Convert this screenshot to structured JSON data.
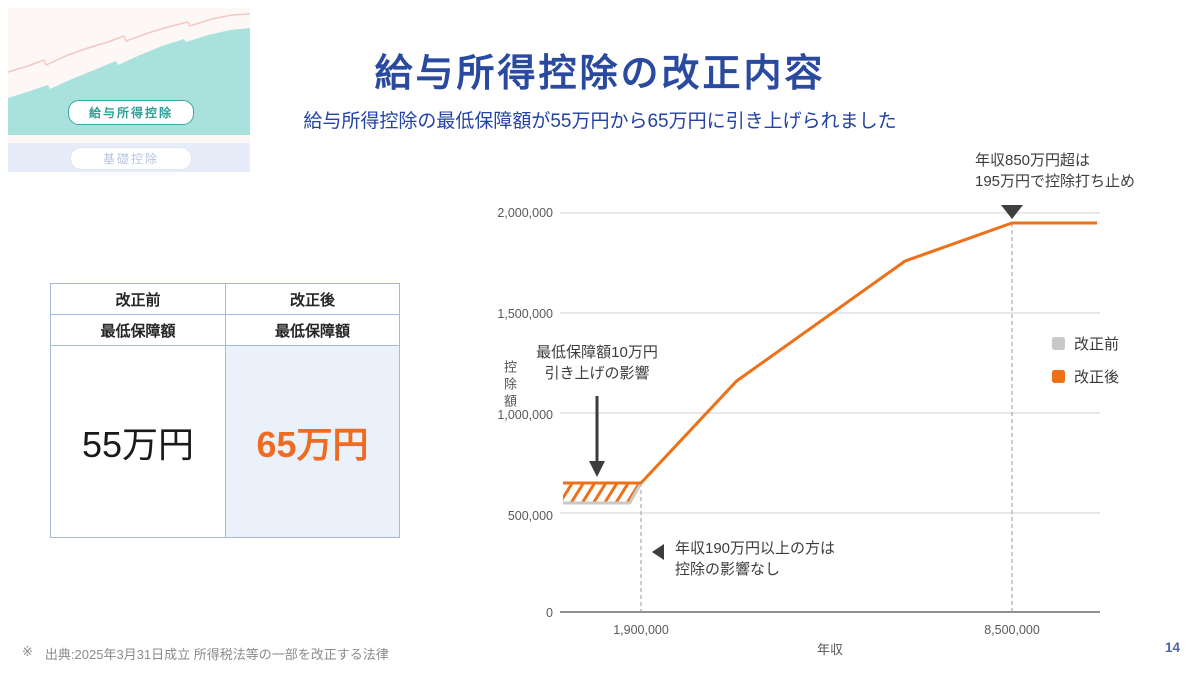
{
  "slide": {
    "title": "給与所得控除の改正内容",
    "subtitle": "給与所得控除の最低保障額が55万円から65万円に引き上げられました",
    "source_mark": "※",
    "source_text": "出典:2025年3月31日成立 所得税法等の一部を改正する法律",
    "page_number": "14"
  },
  "thumbnail": {
    "label_primary": "給与所得控除",
    "label_secondary": "基礎控除"
  },
  "table": {
    "columns": [
      {
        "period": "改正前",
        "item": "最低保障額",
        "value": "55万円",
        "highlight": false
      },
      {
        "period": "改正後",
        "item": "最低保障額",
        "value": "65万円",
        "highlight": true
      }
    ]
  },
  "chart_data": {
    "type": "line",
    "title": "",
    "xlabel": "年収",
    "ylabel": "控除額",
    "xlim": [
      0,
      10000000
    ],
    "ylim": [
      0,
      2000000
    ],
    "grid": true,
    "legend_position": "right",
    "x_ticks": [
      "1,900,000",
      "8,500,000"
    ],
    "y_ticks": [
      "0",
      "500,000",
      "1,000,000",
      "1,500,000",
      "2,000,000"
    ],
    "hatch_x_max": 1900000,
    "series": [
      {
        "name": "改正前",
        "color": "#c9c9c9",
        "x": [
          0,
          1625000,
          1900000,
          3600000,
          6600000,
          8500000,
          10000000
        ],
        "y": [
          550000,
          550000,
          650000,
          1160000,
          1760000,
          1950000,
          1950000
        ]
      },
      {
        "name": "改正後",
        "color": "#ee7118",
        "x": [
          0,
          1900000,
          3600000,
          6600000,
          8500000,
          10000000
        ],
        "y": [
          650000,
          650000,
          1160000,
          1760000,
          1950000,
          1950000
        ]
      }
    ],
    "annotations": {
      "cap": [
        "年収850万円超は",
        "195万円で控除打ち止め"
      ],
      "raise_impact": [
        "最低保障額10万円",
        "引き上げの影響"
      ],
      "no_impact": [
        "年収190万円以上の方は",
        "控除の影響なし"
      ]
    }
  },
  "colors": {
    "title_blue": "#2a4a9f",
    "accent_orange": "#ee7118",
    "before_gray": "#c9c9c9",
    "table_border": "#a3b8e3",
    "highlight_cell": "#eaf1fa",
    "thumbnail_teal": "#a9e2dc",
    "thumbnail_lavender": "#e7edf8"
  }
}
